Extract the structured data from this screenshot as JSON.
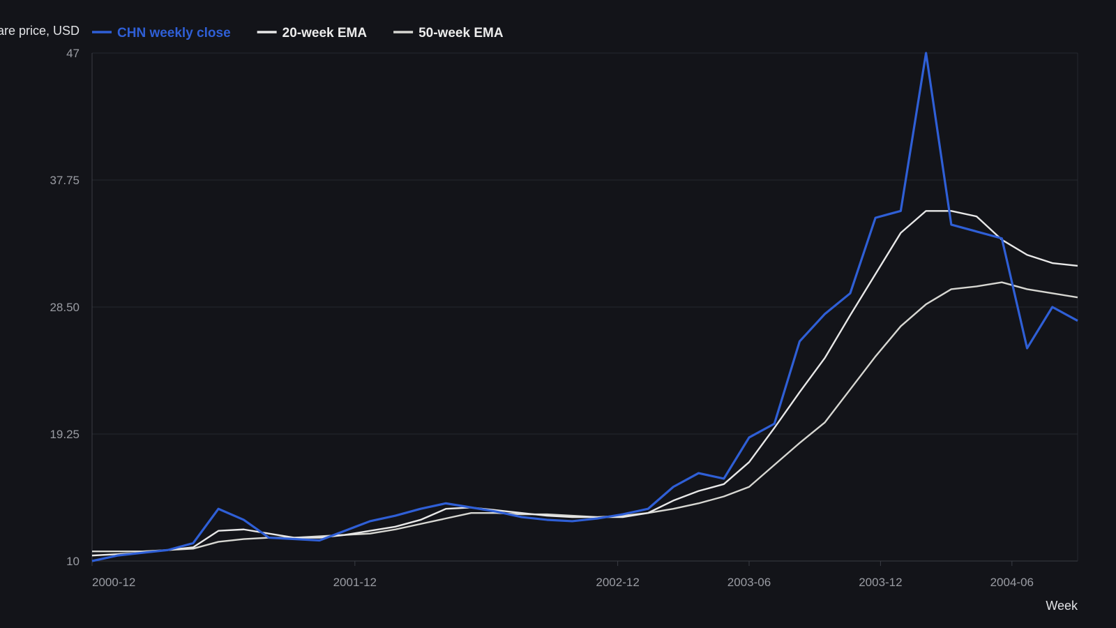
{
  "chart_data": {
    "type": "line",
    "ylabel": "Share price, USD",
    "xlabel": "Week",
    "ylim": [
      10,
      47
    ],
    "yticks": [
      "10",
      "19.25",
      "28.50",
      "37.75",
      "47"
    ],
    "xticks": [
      {
        "label": "2000-12",
        "x": "2000-12-25"
      },
      {
        "label": "2001-12",
        "x": "2001-12-24"
      },
      {
        "label": "2002-12",
        "x": "2002-12-23"
      },
      {
        "label": "2003-06",
        "x": "2003-06-23"
      },
      {
        "label": "2003-12",
        "x": "2003-12-22"
      },
      {
        "label": "2004-06",
        "x": "2004-06-21"
      }
    ],
    "xlim": [
      "2000-12-25",
      "2005-01-01"
    ],
    "grid": true,
    "legend_position": "top-left",
    "x": [
      "2000-12-25",
      "2001-01-29",
      "2001-03-05",
      "2001-04-09",
      "2001-05-14",
      "2001-06-18",
      "2001-07-23",
      "2001-08-27",
      "2001-10-01",
      "2001-11-05",
      "2001-12-10",
      "2002-01-14",
      "2002-02-18",
      "2002-03-25",
      "2002-04-29",
      "2002-06-03",
      "2002-07-08",
      "2002-08-12",
      "2002-09-16",
      "2002-10-21",
      "2002-11-25",
      "2002-12-30",
      "2003-02-03",
      "2003-03-10",
      "2003-04-14",
      "2003-05-19",
      "2003-06-23",
      "2003-07-28",
      "2003-09-01",
      "2003-10-06",
      "2003-11-10",
      "2003-12-15",
      "2004-01-19",
      "2004-02-23",
      "2004-03-29",
      "2004-05-03",
      "2004-06-07",
      "2004-07-12",
      "2004-08-16",
      "2004-09-20"
    ],
    "series": [
      {
        "name": "CHN weekly close",
        "color": "#2f5fd6",
        "values": [
          10.0,
          10.4,
          10.6,
          10.8,
          11.3,
          13.8,
          13.0,
          11.7,
          11.6,
          11.5,
          12.2,
          12.9,
          13.3,
          13.8,
          14.2,
          13.9,
          13.6,
          13.2,
          13.0,
          12.9,
          13.1,
          13.4,
          13.8,
          15.4,
          16.4,
          16.0,
          19.0,
          20.0,
          26.0,
          28.0,
          29.5,
          35.0,
          35.5,
          47.0,
          34.5,
          34.0,
          33.5,
          25.5,
          28.5,
          27.5
        ]
      },
      {
        "name": "20-week EMA",
        "color": "#e8e8e8",
        "values": [
          10.4,
          10.5,
          10.6,
          10.8,
          11.0,
          12.2,
          12.3,
          12.0,
          11.7,
          11.7,
          11.9,
          12.2,
          12.5,
          13.0,
          13.8,
          13.9,
          13.7,
          13.5,
          13.3,
          13.2,
          13.2,
          13.2,
          13.5,
          14.4,
          15.1,
          15.6,
          17.2,
          19.7,
          22.3,
          24.8,
          27.9,
          30.9,
          33.9,
          35.5,
          35.5,
          35.1,
          33.4,
          32.3,
          31.7,
          31.5
        ]
      },
      {
        "name": "50-week EMA",
        "color": "#d7d7d2",
        "values": [
          10.7,
          10.7,
          10.7,
          10.8,
          10.9,
          11.4,
          11.6,
          11.7,
          11.7,
          11.8,
          11.9,
          12.0,
          12.3,
          12.7,
          13.1,
          13.5,
          13.5,
          13.4,
          13.4,
          13.3,
          13.2,
          13.3,
          13.5,
          13.8,
          14.2,
          14.7,
          15.4,
          17.0,
          18.6,
          20.1,
          22.5,
          24.9,
          27.1,
          28.7,
          29.8,
          30.0,
          30.3,
          29.8,
          29.5,
          29.2
        ]
      }
    ]
  }
}
